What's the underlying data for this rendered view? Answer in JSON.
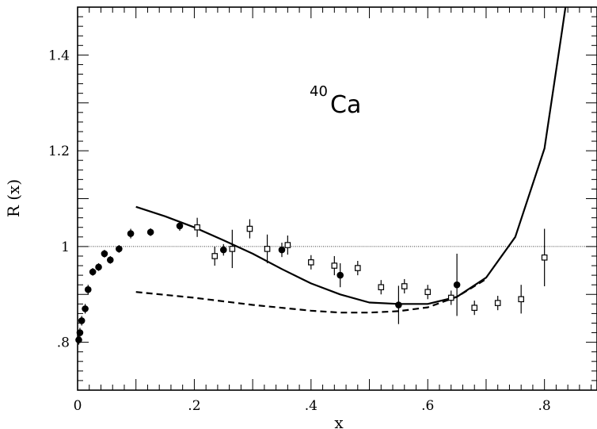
{
  "chart_data": {
    "type": "scatter",
    "xlabel": "x",
    "ylabel": "R (x)",
    "xlim": [
      0,
      0.89
    ],
    "ylim": [
      0.7,
      1.5
    ],
    "x_ticks": [
      {
        "value": 0,
        "label": "0"
      },
      {
        "value": 0.2,
        "label": ".2"
      },
      {
        "value": 0.4,
        "label": ".4"
      },
      {
        "value": 0.6,
        "label": ".6"
      },
      {
        "value": 0.8,
        "label": ".8"
      }
    ],
    "y_ticks": [
      {
        "value": 0.8,
        "label": ".8"
      },
      {
        "value": 1.0,
        "label": "1"
      },
      {
        "value": 1.2,
        "label": "1.2"
      },
      {
        "value": 1.4,
        "label": "1.4"
      }
    ],
    "annotation": {
      "superscript": "40",
      "text": "Ca"
    },
    "reference_line": {
      "y": 1.0,
      "style": "dotted"
    },
    "series": [
      {
        "marker": "filled-circle",
        "points": [
          {
            "x": 0.002,
            "y": 0.805,
            "err": 0.01
          },
          {
            "x": 0.004,
            "y": 0.82,
            "err": 0.01
          },
          {
            "x": 0.007,
            "y": 0.845,
            "err": 0.01
          },
          {
            "x": 0.013,
            "y": 0.87,
            "err": 0.01
          },
          {
            "x": 0.018,
            "y": 0.91,
            "err": 0.01
          },
          {
            "x": 0.026,
            "y": 0.947,
            "err": 0.008
          },
          {
            "x": 0.036,
            "y": 0.957,
            "err": 0.008
          },
          {
            "x": 0.046,
            "y": 0.985,
            "err": 0.008
          },
          {
            "x": 0.056,
            "y": 0.972,
            "err": 0.008
          },
          {
            "x": 0.071,
            "y": 0.995,
            "err": 0.008
          },
          {
            "x": 0.091,
            "y": 1.027,
            "err": 0.01
          },
          {
            "x": 0.125,
            "y": 1.03,
            "err": 0.008
          },
          {
            "x": 0.175,
            "y": 1.043,
            "err": 0.01
          },
          {
            "x": 0.25,
            "y": 0.993,
            "err": 0.012
          },
          {
            "x": 0.35,
            "y": 0.993,
            "err": 0.015
          },
          {
            "x": 0.45,
            "y": 0.94,
            "err": 0.025
          },
          {
            "x": 0.55,
            "y": 0.878,
            "err": 0.04
          },
          {
            "x": 0.65,
            "y": 0.92,
            "err": 0.065
          }
        ]
      },
      {
        "marker": "open-square",
        "points": [
          {
            "x": 0.205,
            "y": 1.04,
            "err": 0.02
          },
          {
            "x": 0.235,
            "y": 0.98,
            "err": 0.02
          },
          {
            "x": 0.265,
            "y": 0.995,
            "err": 0.04
          },
          {
            "x": 0.295,
            "y": 1.037,
            "err": 0.02
          },
          {
            "x": 0.325,
            "y": 0.995,
            "err": 0.03
          },
          {
            "x": 0.36,
            "y": 1.003,
            "err": 0.02
          },
          {
            "x": 0.4,
            "y": 0.967,
            "err": 0.015
          },
          {
            "x": 0.44,
            "y": 0.96,
            "err": 0.02
          },
          {
            "x": 0.48,
            "y": 0.955,
            "err": 0.015
          },
          {
            "x": 0.52,
            "y": 0.915,
            "err": 0.015
          },
          {
            "x": 0.56,
            "y": 0.917,
            "err": 0.015
          },
          {
            "x": 0.6,
            "y": 0.905,
            "err": 0.015
          },
          {
            "x": 0.64,
            "y": 0.893,
            "err": 0.015
          },
          {
            "x": 0.68,
            "y": 0.872,
            "err": 0.015
          },
          {
            "x": 0.72,
            "y": 0.882,
            "err": 0.015
          },
          {
            "x": 0.76,
            "y": 0.89,
            "err": 0.03
          },
          {
            "x": 0.8,
            "y": 0.977,
            "err": 0.06
          }
        ]
      },
      {
        "marker": "none",
        "line_style": "solid",
        "points": [
          {
            "x": 0.1,
            "y": 1.083
          },
          {
            "x": 0.15,
            "y": 1.063
          },
          {
            "x": 0.2,
            "y": 1.04
          },
          {
            "x": 0.25,
            "y": 1.013
          },
          {
            "x": 0.3,
            "y": 0.985
          },
          {
            "x": 0.35,
            "y": 0.953
          },
          {
            "x": 0.4,
            "y": 0.923
          },
          {
            "x": 0.45,
            "y": 0.9
          },
          {
            "x": 0.5,
            "y": 0.883
          },
          {
            "x": 0.55,
            "y": 0.88
          },
          {
            "x": 0.6,
            "y": 0.88
          },
          {
            "x": 0.65,
            "y": 0.895
          },
          {
            "x": 0.7,
            "y": 0.935
          },
          {
            "x": 0.75,
            "y": 1.02
          },
          {
            "x": 0.8,
            "y": 1.205
          },
          {
            "x": 0.83,
            "y": 1.45
          },
          {
            "x": 0.836,
            "y": 1.5
          }
        ]
      },
      {
        "marker": "none",
        "line_style": "dashed",
        "points": [
          {
            "x": 0.1,
            "y": 0.905
          },
          {
            "x": 0.2,
            "y": 0.893
          },
          {
            "x": 0.3,
            "y": 0.878
          },
          {
            "x": 0.4,
            "y": 0.866
          },
          {
            "x": 0.45,
            "y": 0.862
          },
          {
            "x": 0.5,
            "y": 0.862
          },
          {
            "x": 0.55,
            "y": 0.865
          },
          {
            "x": 0.6,
            "y": 0.873
          },
          {
            "x": 0.65,
            "y": 0.895
          },
          {
            "x": 0.7,
            "y": 0.932
          }
        ]
      }
    ]
  }
}
